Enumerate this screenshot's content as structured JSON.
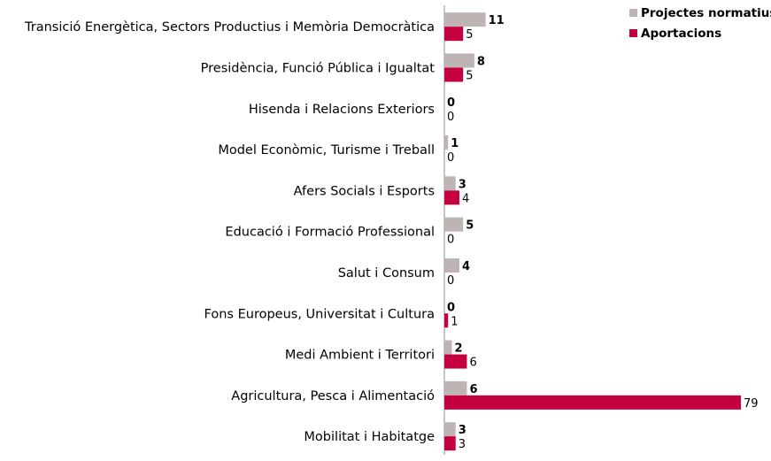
{
  "chart_data": {
    "type": "bar",
    "orientation": "horizontal",
    "categories": [
      "Transició Energètica, Sectors Productius i Memòria Democràtica",
      "Presidència, Funció Pública i Igualtat",
      "Hisenda i Relacions Exteriors",
      "Model Econòmic, Turisme i Treball",
      "Afers Socials i Esports",
      "Educació i Formació Professional",
      "Salut i Consum",
      "Fons Europeus, Universitat i Cultura",
      "Medi Ambient i Territori",
      "Agricultura, Pesca i Alimentació",
      "Mobilitat i Habitatge"
    ],
    "series": [
      {
        "name": "Projectes normatius",
        "color": "#bfb4b4",
        "values": [
          11,
          8,
          0,
          1,
          3,
          5,
          4,
          0,
          2,
          6,
          3
        ]
      },
      {
        "name": "Aportacions",
        "color": "#c4003e",
        "values": [
          5,
          5,
          0,
          0,
          4,
          0,
          0,
          1,
          6,
          79,
          3
        ]
      }
    ],
    "title": "",
    "xlabel": "",
    "ylabel": "",
    "xlim": [
      0,
      79
    ],
    "grid": false,
    "data_labels": true,
    "legend_position": "top-right"
  }
}
